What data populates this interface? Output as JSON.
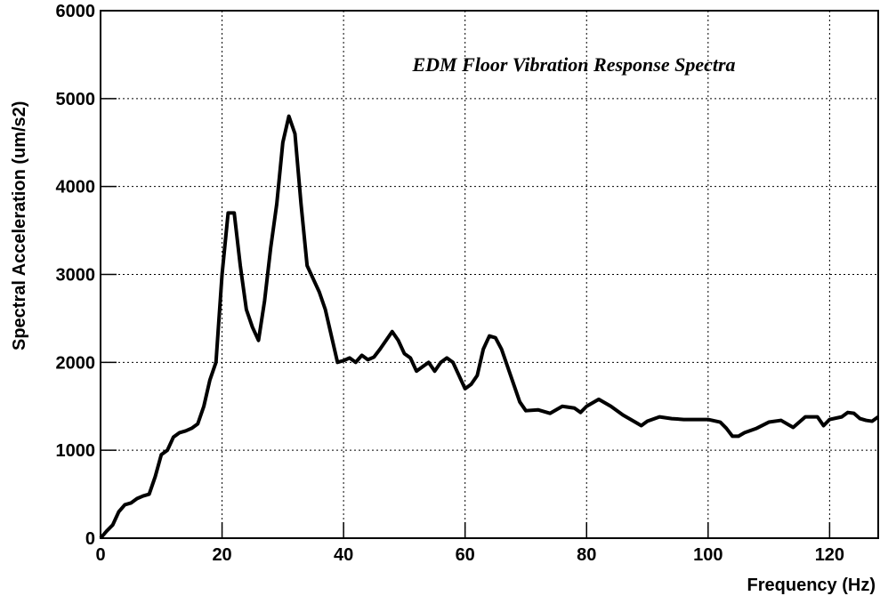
{
  "chart_data": {
    "type": "line",
    "title": "EDM Floor Vibration Response Spectra",
    "x_label": "Frequency (Hz)",
    "y_label": "Spectral Acceleration (um/s2)",
    "xlim": [
      0,
      128
    ],
    "ylim": [
      0,
      6000
    ],
    "xticks": [
      0,
      20,
      40,
      60,
      80,
      100,
      120
    ],
    "yticks": [
      0,
      1000,
      2000,
      3000,
      4000,
      5000,
      6000
    ],
    "grid": true,
    "x": [
      0,
      1,
      2,
      3,
      4,
      5,
      6,
      7,
      8,
      9,
      10,
      11,
      12,
      13,
      14,
      15,
      16,
      17,
      18,
      19,
      20,
      21,
      22,
      23,
      24,
      25,
      26,
      27,
      28,
      29,
      30,
      31,
      32,
      33,
      34,
      35,
      36,
      37,
      38,
      39,
      40,
      41,
      42,
      43,
      44,
      45,
      46,
      47,
      48,
      49,
      50,
      51,
      52,
      53,
      54,
      55,
      56,
      57,
      58,
      59,
      60,
      61,
      62,
      63,
      64,
      65,
      66,
      67,
      68,
      69,
      70,
      72,
      74,
      76,
      78,
      79,
      80,
      82,
      84,
      86,
      88,
      89,
      90,
      92,
      94,
      96,
      98,
      100,
      102,
      103,
      104,
      105,
      106,
      108,
      110,
      112,
      114,
      116,
      118,
      119,
      120,
      122,
      123,
      124,
      125,
      126,
      127,
      128
    ],
    "series": [
      {
        "name": "EDM Floor",
        "color": "#000000",
        "values": [
          0,
          80,
          150,
          300,
          380,
          400,
          450,
          480,
          500,
          700,
          950,
          1000,
          1150,
          1200,
          1220,
          1250,
          1300,
          1500,
          1800,
          2000,
          3000,
          3700,
          3700,
          3100,
          2600,
          2400,
          2250,
          2700,
          3300,
          3800,
          4500,
          4800,
          4600,
          3800,
          3100,
          2950,
          2800,
          2600,
          2300,
          2000,
          2020,
          2050,
          2000,
          2080,
          2030,
          2060,
          2150,
          2250,
          2350,
          2250,
          2100,
          2050,
          1900,
          1950,
          2000,
          1900,
          2000,
          2050,
          2000,
          1850,
          1700,
          1750,
          1850,
          2150,
          2300,
          2280,
          2150,
          1950,
          1750,
          1550,
          1450,
          1460,
          1420,
          1500,
          1480,
          1430,
          1500,
          1580,
          1500,
          1400,
          1320,
          1280,
          1330,
          1380,
          1360,
          1350,
          1350,
          1350,
          1320,
          1250,
          1160,
          1160,
          1200,
          1250,
          1320,
          1340,
          1260,
          1380,
          1380,
          1280,
          1350,
          1380,
          1430,
          1420,
          1360,
          1340,
          1330,
          1380
        ]
      }
    ]
  }
}
